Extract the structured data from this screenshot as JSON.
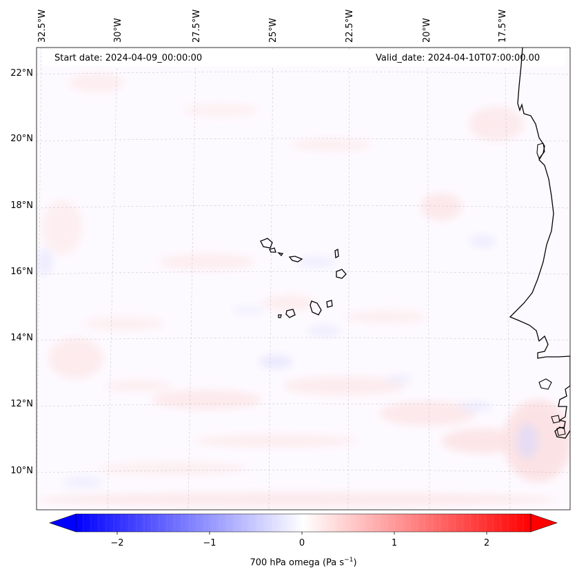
{
  "header": {
    "start_date": "Start date: 2024-04-09_00:00:00",
    "valid_date": "Valid_date: 2024-04-10T07:00:00.00"
  },
  "lon_labels": [
    "32.5°W",
    "30°W",
    "27.5°W",
    "25°W",
    "22.5°W",
    "20°W",
    "17.5°W"
  ],
  "lat_labels": [
    "22°N",
    "20°N",
    "18°N",
    "16°N",
    "14°N",
    "12°N",
    "10°N"
  ],
  "colorbar": {
    "label_prefix": "700 hPa omega (Pa s",
    "label_exp": "−1",
    "label_suffix": ")",
    "ticks": [
      "−2",
      "−1",
      "0",
      "1",
      "2"
    ],
    "min": -2.75,
    "max": 2.75,
    "colormap": "bwr",
    "low_color": "#0000ff",
    "mid_color": "#ffffff",
    "high_color": "#ff0000"
  },
  "map": {
    "projection": "lambert-conformal",
    "field": "700 hPa omega",
    "coastline_color": "#000000",
    "gridline_style": "dashed"
  }
}
